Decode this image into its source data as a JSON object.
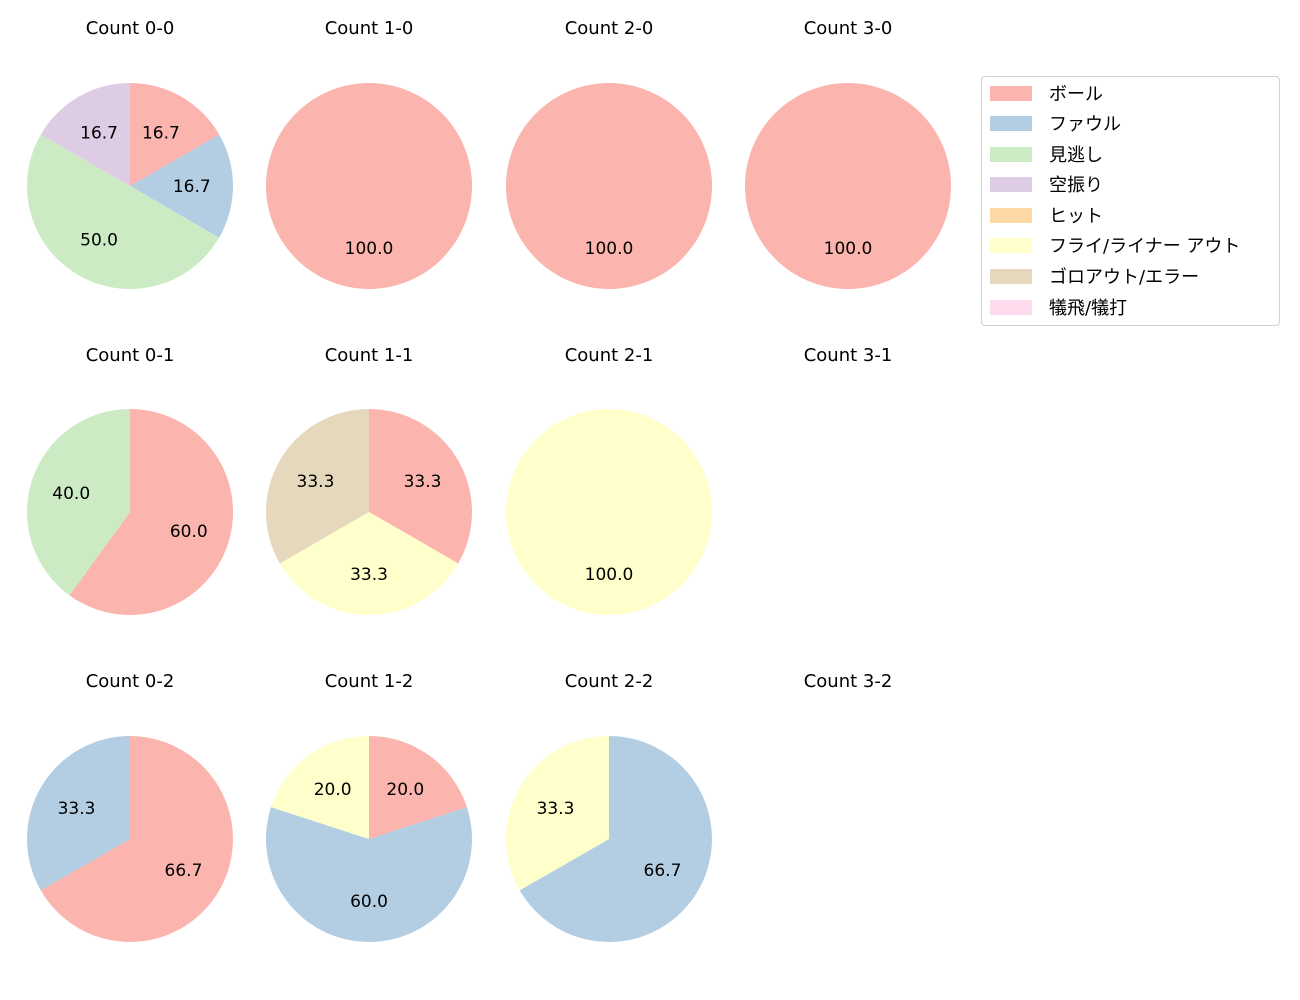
{
  "chart_data": {
    "type": "pie",
    "legend": {
      "position": "upper right",
      "entries": [
        {
          "label": "ボール",
          "color": "#fbb4ae"
        },
        {
          "label": "ファウル",
          "color": "#b3cde3"
        },
        {
          "label": "見逃し",
          "color": "#ccebc5"
        },
        {
          "label": "空振り",
          "color": "#decbe4"
        },
        {
          "label": "ヒット",
          "color": "#fed9a6"
        },
        {
          "label": "フライ/ライナー アウト",
          "color": "#ffffcc"
        },
        {
          "label": "ゴロアウト/エラー",
          "color": "#e5d8bd"
        },
        {
          "label": "犠飛/犠打",
          "color": "#fddaec"
        }
      ]
    },
    "charts": [
      {
        "title": "Count 0-0",
        "slices": [
          {
            "label": "ボール",
            "value": 16.7
          },
          {
            "label": "ファウル",
            "value": 16.7
          },
          {
            "label": "見逃し",
            "value": 50.0
          },
          {
            "label": "空振り",
            "value": 16.7
          }
        ]
      },
      {
        "title": "Count 1-0",
        "slices": [
          {
            "label": "ボール",
            "value": 100.0
          }
        ]
      },
      {
        "title": "Count 2-0",
        "slices": [
          {
            "label": "ボール",
            "value": 100.0
          }
        ]
      },
      {
        "title": "Count 3-0",
        "slices": [
          {
            "label": "ボール",
            "value": 100.0
          }
        ]
      },
      {
        "title": "Count 0-1",
        "slices": [
          {
            "label": "ボール",
            "value": 60.0
          },
          {
            "label": "見逃し",
            "value": 40.0
          }
        ]
      },
      {
        "title": "Count 1-1",
        "slices": [
          {
            "label": "ボール",
            "value": 33.3
          },
          {
            "label": "フライ/ライナー アウト",
            "value": 33.3
          },
          {
            "label": "ゴロアウト/エラー",
            "value": 33.3
          }
        ]
      },
      {
        "title": "Count 2-1",
        "slices": [
          {
            "label": "フライ/ライナー アウト",
            "value": 100.0
          }
        ]
      },
      {
        "title": "Count 3-1",
        "slices": []
      },
      {
        "title": "Count 0-2",
        "slices": [
          {
            "label": "ボール",
            "value": 66.7
          },
          {
            "label": "ファウル",
            "value": 33.3
          }
        ]
      },
      {
        "title": "Count 1-2",
        "slices": [
          {
            "label": "ボール",
            "value": 20.0
          },
          {
            "label": "ファウル",
            "value": 60.0
          },
          {
            "label": "フライ/ライナー アウト",
            "value": 20.0
          }
        ]
      },
      {
        "title": "Count 2-2",
        "slices": [
          {
            "label": "ファウル",
            "value": 66.7
          },
          {
            "label": "フライ/ライナー アウト",
            "value": 33.3
          }
        ]
      },
      {
        "title": "Count 3-2",
        "slices": []
      }
    ]
  }
}
